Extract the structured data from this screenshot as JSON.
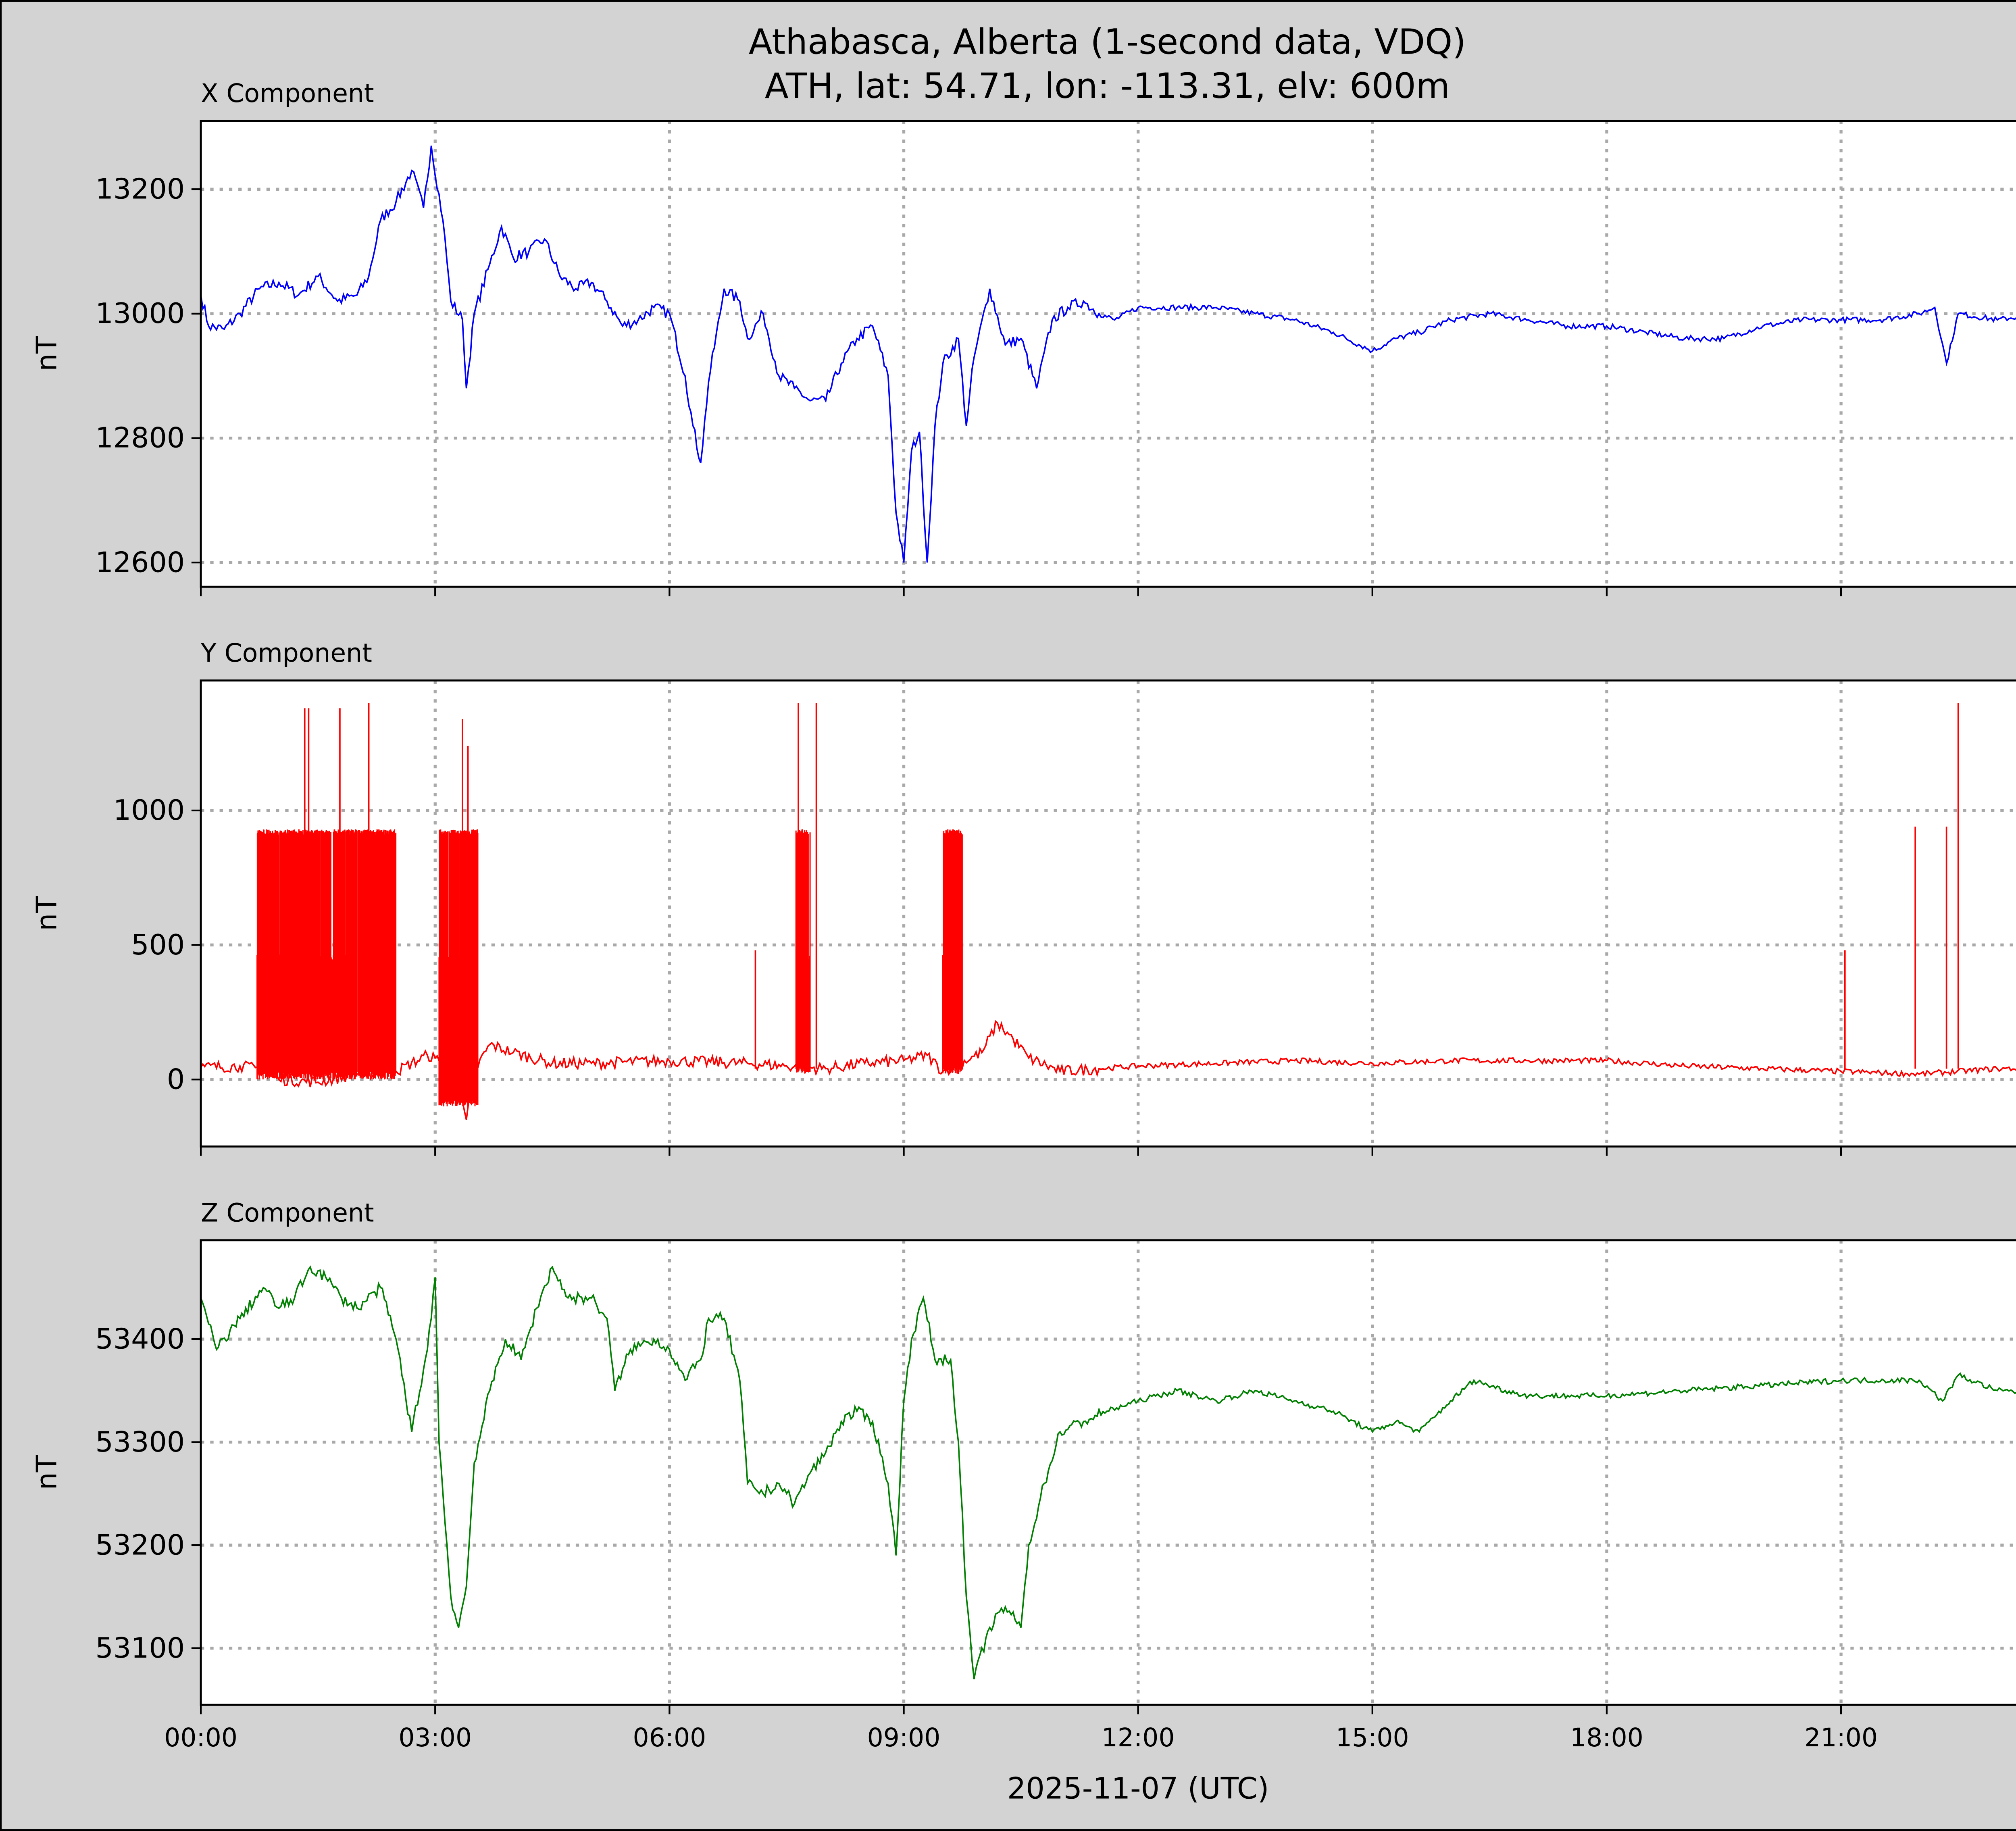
{
  "title_line1": "Athabasca, Alberta (1-second data, VDQ)",
  "title_line2": "ATH, lat: 54.71, lon: -113.31, elv: 600m",
  "xlabel": "2025-11-07 (UTC)",
  "colors": {
    "background": "#d3d3d3",
    "x": "#0000ff",
    "y": "#ff0000",
    "z": "#008000",
    "grid": "#a9a9a9"
  },
  "chart_data": [
    {
      "type": "line",
      "title": "X Component",
      "ylabel": "nT",
      "xlim": [
        0,
        24
      ],
      "ylim": [
        12561,
        13310
      ],
      "yticks": [
        12600,
        12800,
        13000,
        13200
      ],
      "xticks": [
        0,
        3,
        6,
        9,
        12,
        15,
        18,
        21
      ],
      "xtick_labels": [
        "00:00",
        "03:00",
        "06:00",
        "09:00",
        "12:00",
        "15:00",
        "18:00",
        "21:00"
      ],
      "grid": true,
      "color": "#0000ff",
      "x": [
        0,
        0.1,
        0.3,
        0.5,
        0.75,
        1.0,
        1.25,
        1.5,
        1.75,
        2.0,
        2.15,
        2.3,
        2.5,
        2.7,
        2.85,
        2.95,
        3.1,
        3.2,
        3.35,
        3.4,
        3.5,
        3.7,
        3.85,
        4.0,
        4.2,
        4.4,
        4.6,
        4.8,
        5.0,
        5.2,
        5.4,
        5.6,
        5.8,
        6.0,
        6.2,
        6.3,
        6.4,
        6.5,
        6.7,
        6.9,
        7.0,
        7.2,
        7.4,
        7.6,
        7.8,
        8.0,
        8.2,
        8.4,
        8.6,
        8.8,
        8.9,
        9.0,
        9.1,
        9.2,
        9.3,
        9.4,
        9.5,
        9.7,
        9.8,
        9.9,
        10.1,
        10.3,
        10.5,
        10.7,
        10.9,
        11.1,
        11.3,
        11.5,
        11.7,
        12.0,
        12.5,
        13.0,
        13.5,
        14.0,
        14.5,
        15.0,
        15.3,
        15.6,
        16.0,
        16.5,
        17.0,
        17.5,
        18.0,
        18.5,
        19.0,
        19.5,
        20.0,
        20.5,
        21.0,
        21.5,
        22.0,
        22.2,
        22.35,
        22.5,
        23.0,
        23.5,
        24
      ],
      "y": [
        13030,
        12980,
        12975,
        13000,
        13040,
        13050,
        13030,
        13060,
        13020,
        13030,
        13060,
        13150,
        13180,
        13230,
        13170,
        13270,
        13150,
        13020,
        12990,
        12880,
        13000,
        13080,
        13140,
        13090,
        13100,
        13120,
        13060,
        13040,
        13050,
        13020,
        12980,
        12990,
        13010,
        13000,
        12900,
        12820,
        12760,
        12890,
        13040,
        13020,
        12960,
        13000,
        12900,
        12880,
        12860,
        12860,
        12920,
        12960,
        12980,
        12900,
        12680,
        12600,
        12780,
        12810,
        12600,
        12820,
        12920,
        12960,
        12820,
        12930,
        13040,
        12950,
        12960,
        12880,
        12990,
        13010,
        13020,
        13000,
        12990,
        13010,
        13010,
        13010,
        13000,
        12990,
        12970,
        12940,
        12960,
        12970,
        12990,
        13000,
        12990,
        12980,
        12980,
        12970,
        12960,
        12960,
        12980,
        12990,
        12990,
        12990,
        13000,
        13010,
        12920,
        13000,
        12990,
        13000,
        13000
      ]
    },
    {
      "type": "line",
      "title": "Y Component",
      "ylabel": "nT",
      "xlim": [
        0,
        24
      ],
      "ylim": [
        -249,
        1483
      ],
      "yticks": [
        0,
        500,
        1000
      ],
      "xticks": [
        0,
        3,
        6,
        9,
        12,
        15,
        18,
        21
      ],
      "xtick_labels": [
        "00:00",
        "03:00",
        "06:00",
        "09:00",
        "12:00",
        "15:00",
        "18:00",
        "21:00"
      ],
      "grid": true,
      "color": "#ff0000",
      "x": [
        0,
        0.5,
        0.75,
        1.0,
        1.5,
        2.0,
        2.5,
        2.9,
        3.0,
        3.1,
        3.3,
        3.4,
        3.5,
        3.7,
        4.0,
        4.5,
        5,
        6,
        7,
        7.5,
        8,
        8.5,
        9,
        9.3,
        9.5,
        10.0,
        10.2,
        10.4,
        10.6,
        11,
        11.5,
        12,
        13,
        14,
        15,
        16,
        17,
        18,
        19,
        20,
        21,
        22,
        23,
        24
      ],
      "y": [
        45,
        50,
        40,
        0,
        -10,
        20,
        30,
        90,
        80,
        50,
        -50,
        -150,
        30,
        130,
        100,
        60,
        60,
        70,
        60,
        50,
        40,
        60,
        70,
        90,
        30,
        100,
        210,
        150,
        80,
        30,
        40,
        50,
        60,
        70,
        60,
        70,
        70,
        70,
        50,
        40,
        30,
        20,
        40,
        40
      ],
      "bursts": [
        {
          "start": 0.72,
          "end": 2.5,
          "low": 0,
          "high": 930
        },
        {
          "start": 3.05,
          "end": 3.55,
          "low": -100,
          "high": 930
        },
        {
          "start": 7.62,
          "end": 7.8,
          "low": 20,
          "high": 930
        },
        {
          "start": 9.5,
          "end": 9.75,
          "low": 20,
          "high": 930
        }
      ],
      "spikes": [
        [
          1.33,
          1380
        ],
        [
          1.38,
          1380
        ],
        [
          1.78,
          1380
        ],
        [
          2.15,
          1400
        ],
        [
          3.35,
          1340
        ],
        [
          3.42,
          1240
        ],
        [
          7.1,
          480
        ],
        [
          7.65,
          1400
        ],
        [
          7.88,
          1400
        ],
        [
          21.05,
          480
        ],
        [
          21.95,
          940
        ],
        [
          22.35,
          940
        ],
        [
          22.5,
          1400
        ]
      ]
    },
    {
      "type": "line",
      "title": "Z Component",
      "ylabel": "nT",
      "xlim": [
        0,
        24
      ],
      "ylim": [
        53045,
        53496
      ],
      "yticks": [
        53100,
        53200,
        53300,
        53400
      ],
      "xticks": [
        0,
        3,
        6,
        9,
        12,
        15,
        18,
        21
      ],
      "xtick_labels": [
        "00:00",
        "03:00",
        "06:00",
        "09:00",
        "12:00",
        "15:00",
        "18:00",
        "21:00"
      ],
      "grid": true,
      "color": "#008000",
      "x": [
        0,
        0.2,
        0.5,
        0.8,
        1.0,
        1.2,
        1.4,
        1.6,
        1.8,
        2.0,
        2.3,
        2.5,
        2.7,
        2.9,
        3.0,
        3.05,
        3.2,
        3.3,
        3.4,
        3.5,
        3.7,
        3.9,
        4.1,
        4.3,
        4.5,
        4.7,
        5.0,
        5.2,
        5.3,
        5.5,
        5.8,
        6.0,
        6.2,
        6.4,
        6.5,
        6.7,
        6.9,
        7.0,
        7.2,
        7.4,
        7.6,
        7.8,
        8.0,
        8.2,
        8.4,
        8.6,
        8.8,
        8.9,
        9.0,
        9.1,
        9.25,
        9.4,
        9.6,
        9.7,
        9.8,
        9.9,
        10.1,
        10.3,
        10.5,
        10.6,
        10.8,
        11.0,
        11.3,
        11.6,
        12.0,
        12.5,
        13,
        13.5,
        14,
        14.5,
        15,
        15.3,
        15.6,
        16.0,
        16.3,
        16.7,
        17,
        18,
        19,
        20,
        21,
        22,
        22.3,
        22.5,
        23,
        24
      ],
      "y": [
        53440,
        53390,
        53420,
        53450,
        53430,
        53440,
        53470,
        53460,
        53440,
        53430,
        53450,
        53400,
        53310,
        53390,
        53460,
        53300,
        53150,
        53120,
        53160,
        53280,
        53350,
        53400,
        53380,
        53430,
        53470,
        53440,
        53440,
        53420,
        53350,
        53390,
        53400,
        53390,
        53360,
        53380,
        53420,
        53420,
        53360,
        53260,
        53250,
        53260,
        53240,
        53270,
        53290,
        53320,
        53330,
        53320,
        53260,
        53190,
        53340,
        53400,
        53440,
        53380,
        53380,
        53300,
        53150,
        53070,
        53120,
        53140,
        53120,
        53200,
        53260,
        53310,
        53320,
        53330,
        53340,
        53350,
        53340,
        53350,
        53340,
        53330,
        53310,
        53320,
        53310,
        53340,
        53360,
        53350,
        53345,
        53345,
        53350,
        53355,
        53360,
        53360,
        53340,
        53365,
        53350,
        53345
      ]
    }
  ]
}
